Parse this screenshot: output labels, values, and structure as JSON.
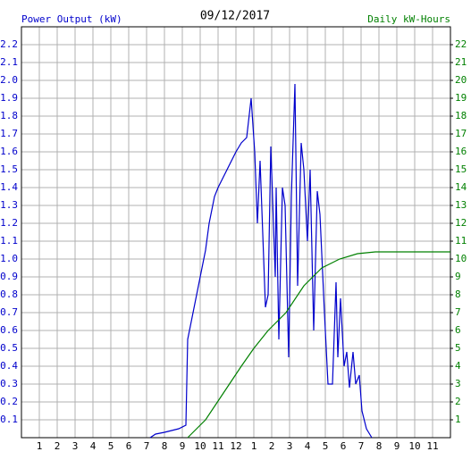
{
  "chart_data": {
    "type": "line",
    "title": "09/12/2017",
    "y_label": "Power Output (kW)",
    "y2_label": "Daily kW-Hours",
    "xlim": [
      0,
      24
    ],
    "ylim": [
      0,
      2.3
    ],
    "y2lim": [
      0,
      23
    ],
    "grid": true,
    "xticks": [
      1,
      2,
      3,
      4,
      5,
      6,
      7,
      8,
      9,
      10,
      11,
      12,
      {
        "value": 13,
        "label": "1"
      },
      {
        "value": 14,
        "label": "2"
      },
      {
        "value": 15,
        "label": "3"
      },
      {
        "value": 16,
        "label": "4"
      },
      {
        "value": 17,
        "label": "5"
      },
      {
        "value": 18,
        "label": "6"
      },
      {
        "value": 19,
        "label": "7"
      },
      {
        "value": 20,
        "label": "8"
      },
      {
        "value": 21,
        "label": "9"
      },
      {
        "value": 22,
        "label": "10"
      },
      {
        "value": 23,
        "label": "11"
      }
    ],
    "yticks": [
      0.1,
      0.2,
      0.3,
      0.4,
      0.5,
      0.6,
      0.7,
      0.8,
      0.9,
      {
        "value": 1,
        "label": "1.0"
      },
      1.1,
      1.2,
      1.3,
      1.4,
      1.5,
      1.6,
      1.7,
      1.8,
      1.9,
      {
        "value": 2,
        "label": "2.0"
      },
      2.1,
      2.2
    ],
    "y2ticks": [
      1,
      2,
      3,
      4,
      5,
      6,
      7,
      8,
      9,
      10,
      11,
      12,
      13,
      14,
      15,
      16,
      17,
      18,
      19,
      20,
      21,
      22
    ],
    "series": [
      {
        "name": "Power Output (kW)",
        "color": "#0000cc",
        "x": [
          7.2,
          7.5,
          8,
          8.8,
          9.2,
          9.3,
          9.5,
          9.8,
          10,
          10.3,
          10.5,
          10.8,
          11,
          11.5,
          12,
          12.3,
          12.6,
          12.85,
          13.05,
          13.2,
          13.35,
          13.65,
          13.8,
          13.95,
          14.2,
          14.25,
          14.4,
          14.6,
          14.75,
          14.95,
          15.1,
          15.3,
          15.45,
          15.65,
          15.8,
          16,
          16.15,
          16.35,
          16.55,
          16.7,
          16.95,
          17.15,
          17.4,
          17.6,
          17.7,
          17.85,
          18.05,
          18.2,
          18.35,
          18.55,
          18.7,
          18.9,
          19.05,
          19.3,
          19.6
        ],
        "values": [
          0,
          0.02,
          0.03,
          0.05,
          0.07,
          0.55,
          0.65,
          0.8,
          0.9,
          1.05,
          1.2,
          1.35,
          1.4,
          1.5,
          1.6,
          1.65,
          1.68,
          1.9,
          1.6,
          1.2,
          1.55,
          0.73,
          0.8,
          1.63,
          0.9,
          1.4,
          0.55,
          1.4,
          1.3,
          0.45,
          1.35,
          1.98,
          0.85,
          1.65,
          1.5,
          1.1,
          1.5,
          0.6,
          1.38,
          1.25,
          0.7,
          0.3,
          0.3,
          0.87,
          0.45,
          0.78,
          0.4,
          0.48,
          0.28,
          0.48,
          0.3,
          0.35,
          0.15,
          0.05,
          0
        ]
      },
      {
        "name": "Daily kW-Hours",
        "color": "#008000",
        "axis": "y2",
        "x": [
          9.3,
          10.3,
          11.3,
          12.3,
          13,
          13.8,
          14.8,
          15.8,
          16.8,
          17.8,
          18.8,
          19.8,
          24
        ],
        "values": [
          0,
          1,
          2.5,
          4,
          5,
          6,
          7,
          8.5,
          9.5,
          10,
          10.3,
          10.4,
          10.4
        ]
      }
    ]
  }
}
